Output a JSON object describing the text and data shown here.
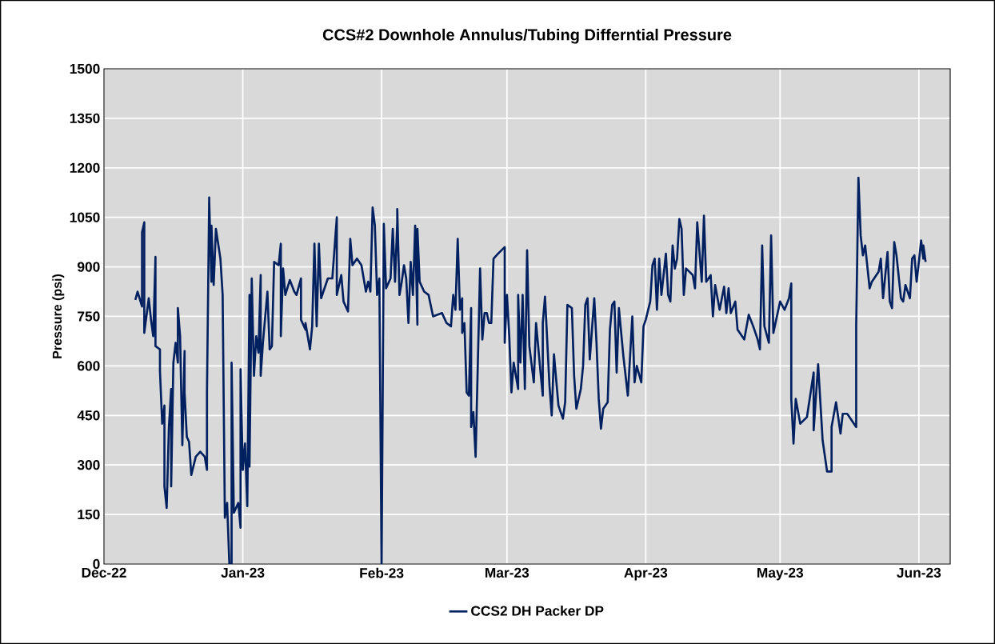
{
  "chart_data": {
    "type": "line",
    "title": "CCS#2 Downhole  Annulus/Tubing Differntial Pressure",
    "ylabel": "Pressure (psi)",
    "xlim": [
      "2022-12-01",
      "2023-06-08"
    ],
    "xticks": [
      {
        "value": "2022-12-01",
        "label": "Dec-22"
      },
      {
        "value": "2023-01-01",
        "label": "Jan-23"
      },
      {
        "value": "2023-02-01",
        "label": "Feb-23"
      },
      {
        "value": "2023-03-01",
        "label": "Mar-23"
      },
      {
        "value": "2023-04-01",
        "label": "Apr-23"
      },
      {
        "value": "2023-05-01",
        "label": "May-23"
      },
      {
        "value": "2023-06-01",
        "label": "Jun-23"
      }
    ],
    "ylim": [
      0,
      1500
    ],
    "yticks": [
      0,
      150,
      300,
      450,
      600,
      750,
      900,
      1050,
      1200,
      1350,
      1500
    ],
    "grid": true,
    "legend": "bottom",
    "marker": "none",
    "line_style": "solid",
    "x": [
      "2022-12-08",
      "2022-12-08T12:00",
      "2022-12-09T12:00",
      "2022-12-09T12:00",
      "2022-12-10",
      "2022-12-10",
      "2022-12-11",
      "2022-12-11T12:00",
      "2022-12-12",
      "2022-12-12T12:00",
      "2022-12-12T12:00",
      "2022-12-13T12:00",
      "2022-12-13T12:00",
      "2022-12-14",
      "2022-12-14T12:00",
      "2022-12-14T12:00",
      "2022-12-15",
      "2022-12-15T12:00",
      "2022-12-16",
      "2022-12-16",
      "2022-12-16T12:00",
      "2022-12-17",
      "2022-12-17T12:00",
      "2022-12-17T12:00",
      "2022-12-18",
      "2022-12-18T12:00",
      "2022-12-19",
      "2022-12-19",
      "2022-12-19T12:00",
      "2022-12-20",
      "2022-12-20T12:00",
      "2022-12-21T12:00",
      "2022-12-22T12:00",
      "2022-12-23T12:00",
      "2022-12-24",
      "2022-12-24",
      "2022-12-24T12:00",
      "2022-12-24T12:00",
      "2022-12-25",
      "2022-12-25",
      "2022-12-25T12:00",
      "2022-12-26",
      "2022-12-27",
      "2022-12-27T12:00",
      "2022-12-28",
      "2022-12-28T12:00",
      "2022-12-29",
      "2022-12-29T12:00",
      "2022-12-29T12:00",
      "2022-12-30",
      "2022-12-31",
      "2022-12-31T12:00",
      "2022-12-31T12:00",
      "2023-01-01",
      "2023-01-01T12:00",
      "2023-01-02",
      "2023-01-02T12:00",
      "2023-01-02T12:00",
      "2023-01-03",
      "2023-01-03T12:00",
      "2023-01-04",
      "2023-01-04T12:00",
      "2023-01-05",
      "2023-01-05",
      "2023-01-05T12:00",
      "2023-01-06T12:00",
      "2023-01-07",
      "2023-01-07T12:00",
      "2023-01-08",
      "2023-01-09",
      "2023-01-09T12:00",
      "2023-01-09T12:00",
      "2023-01-10",
      "2023-01-10T12:00",
      "2023-01-11T12:00",
      "2023-01-12T12:00",
      "2023-01-13",
      "2023-01-14",
      "2023-01-14",
      "2023-01-15",
      "2023-01-15",
      "2023-01-16",
      "2023-01-16T12:00",
      "2023-01-17",
      "2023-01-17T12:00",
      "2023-01-18",
      "2023-01-18T12:00",
      "2023-01-20",
      "2023-01-21",
      "2023-01-22",
      "2023-01-22",
      "2023-01-23",
      "2023-01-23T12:00",
      "2023-01-24T12:00",
      "2023-01-25",
      "2023-01-25T12:00",
      "2023-01-26T12:00",
      "2023-01-27T12:00",
      "2023-01-28T12:00",
      "2023-01-29",
      "2023-01-29T12:00",
      "2023-01-30",
      "2023-01-30T12:00",
      "2023-01-31",
      "2023-01-31T12:00",
      "2023-02-01",
      "2023-02-01T12:00",
      "2023-02-02",
      "2023-02-03",
      "2023-02-03T12:00",
      "2023-02-04",
      "2023-02-04T12:00",
      "2023-02-04T12:00",
      "2023-02-05",
      "2023-02-05T12:00",
      "2023-02-06",
      "2023-02-06T12:00",
      "2023-02-07",
      "2023-02-07T12:00",
      "2023-02-08",
      "2023-02-08T12:00",
      "2023-02-09",
      "2023-02-09",
      "2023-02-09T12:00",
      "2023-02-10T12:00",
      "2023-02-11T12:00",
      "2023-02-12T12:00",
      "2023-02-14T12:00",
      "2023-02-15T12:00",
      "2023-02-16T12:00",
      "2023-02-17",
      "2023-02-17T12:00",
      "2023-02-18",
      "2023-02-18T12:00",
      "2023-02-19",
      "2023-02-19",
      "2023-02-19T12:00",
      "2023-02-20",
      "2023-02-20T12:00",
      "2023-02-21",
      "2023-02-21",
      "2023-02-21T12:00",
      "2023-02-22",
      "2023-02-22T12:00",
      "2023-02-23",
      "2023-02-23T12:00",
      "2023-02-24",
      "2023-02-24T12:00",
      "2023-02-25",
      "2023-02-25T12:00",
      "2023-02-26",
      "2023-02-27",
      "2023-02-28T12:00",
      "2023-02-28T12:00",
      "2023-03-01",
      "2023-03-01T12:00",
      "2023-03-02",
      "2023-03-02T12:00",
      "2023-03-03T12:00",
      "2023-03-03T12:00",
      "2023-03-04",
      "2023-03-04T12:00",
      "2023-03-05",
      "2023-03-05T12:00",
      "2023-03-06",
      "2023-03-07",
      "2023-03-07T12:00",
      "2023-03-08T12:00",
      "2023-03-09",
      "2023-03-09",
      "2023-03-09T12:00",
      "2023-03-10T12:00",
      "2023-03-11",
      "2023-03-11T12:00",
      "2023-03-12T12:00",
      "2023-03-13T12:00",
      "2023-03-14",
      "2023-03-14T12:00",
      "2023-03-15T12:00",
      "2023-03-16",
      "2023-03-16T12:00",
      "2023-03-17T12:00",
      "2023-03-18",
      "2023-03-18T12:00",
      "2023-03-19",
      "2023-03-19T12:00",
      "2023-03-20T12:00",
      "2023-03-21",
      "2023-03-21T12:00",
      "2023-03-22",
      "2023-03-22T12:00",
      "2023-03-23T12:00",
      "2023-03-24",
      "2023-03-24T12:00",
      "2023-03-25",
      "2023-03-25T12:00",
      "2023-03-26",
      "2023-03-27",
      "2023-03-28",
      "2023-03-29",
      "2023-03-29T12:00",
      "2023-03-30",
      "2023-03-31",
      "2023-03-31T12:00",
      "2023-04-01",
      "2023-04-02",
      "2023-04-02T12:00",
      "2023-04-03",
      "2023-04-03T12:00",
      "2023-04-04",
      "2023-04-04T12:00",
      "2023-04-05T12:00",
      "2023-04-06",
      "2023-04-06T12:00",
      "2023-04-07",
      "2023-04-07T12:00",
      "2023-04-08",
      "2023-04-08T12:00",
      "2023-04-09",
      "2023-04-09T12:00",
      "2023-04-10",
      "2023-04-11T12:00",
      "2023-04-12",
      "2023-04-12T12:00",
      "2023-04-13T12:00",
      "2023-04-14",
      "2023-04-14T12:00",
      "2023-04-15T12:00",
      "2023-04-16",
      "2023-04-16T12:00",
      "2023-04-17T12:00",
      "2023-04-18T12:00",
      "2023-04-19",
      "2023-04-19T12:00",
      "2023-04-20",
      "2023-04-21",
      "2023-04-21T12:00",
      "2023-04-23",
      "2023-04-24",
      "2023-04-25",
      "2023-04-26",
      "2023-04-26T12:00",
      "2023-04-27",
      "2023-04-27T12:00",
      "2023-04-28T12:00",
      "2023-04-29",
      "2023-04-29T12:00",
      "2023-05-01",
      "2023-05-02",
      "2023-05-03",
      "2023-05-03T12:00",
      "2023-05-03T12:00",
      "2023-05-04",
      "2023-05-04T12:00",
      "2023-05-05T12:00",
      "2023-05-07",
      "2023-05-08T12:00",
      "2023-05-08T12:00",
      "2023-05-09T12:00",
      "2023-05-10T12:00",
      "2023-05-11T12:00",
      "2023-05-12T12:00",
      "2023-05-12T12:00",
      "2023-05-13T12:00",
      "2023-05-14T12:00",
      "2023-05-15",
      "2023-05-16",
      "2023-05-18",
      "2023-05-18",
      "2023-05-18T12:00",
      "2023-05-19",
      "2023-05-19T12:00",
      "2023-05-20",
      "2023-05-21",
      "2023-05-21T12:00",
      "2023-05-23",
      "2023-05-23T12:00",
      "2023-05-24",
      "2023-05-25",
      "2023-05-25T12:00",
      "2023-05-26",
      "2023-05-26T12:00",
      "2023-05-27",
      "2023-05-28",
      "2023-05-28T12:00",
      "2023-05-29",
      "2023-05-30",
      "2023-05-30T12:00",
      "2023-05-31",
      "2023-05-31T12:00",
      "2023-06-01",
      "2023-06-01T12:00",
      "2023-06-02",
      "2023-06-02",
      "2023-06-02T12:00"
    ],
    "series": [
      {
        "name": "CCS2 DH Packer DP",
        "color": "#002060",
        "values": [
          800,
          825,
          780,
          1005,
          1035,
          700,
          805,
          740,
          690,
          930,
          660,
          650,
          585,
          425,
          480,
          235,
          170,
          415,
          530,
          235,
          610,
          670,
          610,
          775,
          690,
          360,
          645,
          520,
          385,
          370,
          270,
          325,
          340,
          325,
          285,
          520,
          1110,
          1100,
          855,
          1025,
          845,
          1015,
          925,
          815,
          140,
          185,
          0,
          0,
          610,
          155,
          185,
          110,
          590,
          285,
          365,
          175,
          815,
          295,
          865,
          570,
          690,
          640,
          875,
          570,
          670,
          825,
          650,
          660,
          915,
          905,
          970,
          690,
          895,
          815,
          860,
          825,
          815,
          865,
          740,
          710,
          730,
          650,
          720,
          970,
          720,
          970,
          805,
          865,
          865,
          1050,
          815,
          875,
          795,
          765,
          985,
          905,
          925,
          905,
          825,
          855,
          825,
          1080,
          1025,
          815,
          865,
          0,
          1030,
          835,
          865,
          1015,
          855,
          1035,
          1075,
          815,
          855,
          905,
          865,
          730,
          915,
          815,
          1025,
          725,
          1015,
          855,
          825,
          815,
          750,
          760,
          730,
          720,
          815,
          770,
          985,
          770,
          805,
          700,
          730,
          520,
          510,
          775,
          415,
          460,
          325,
          610,
          895,
          680,
          760,
          760,
          730,
          730,
          925,
          940,
          960,
          670,
          815,
          695,
          520,
          610,
          530,
          815,
          610,
          815,
          530,
          950,
          660,
          550,
          730,
          580,
          510,
          730,
          810,
          540,
          450,
          635,
          480,
          440,
          490,
          785,
          775,
          570,
          470,
          530,
          600,
          785,
          805,
          620,
          805,
          670,
          500,
          410,
          470,
          490,
          710,
          785,
          795,
          580,
          775,
          630,
          510,
          750,
          550,
          600,
          550,
          720,
          740,
          795,
          905,
          925,
          770,
          925,
          815,
          940,
          815,
          795,
          965,
          895,
          925,
          1045,
          1015,
          815,
          895,
          875,
          835,
          1035,
          855,
          1055,
          855,
          875,
          750,
          845,
          770,
          840,
          760,
          835,
          760,
          795,
          710,
          680,
          755,
          720,
          680,
          650,
          965,
          720,
          670,
          995,
          700,
          795,
          770,
          805,
          850,
          500,
          365,
          500,
          425,
          445,
          580,
          405,
          605,
          375,
          280,
          280,
          415,
          490,
          395,
          455,
          455,
          415,
          720,
          1170,
          995,
          935,
          965,
          835,
          855,
          885,
          925,
          805,
          945,
          795,
          775,
          975,
          935,
          805,
          795,
          845,
          805,
          925,
          935,
          855,
          915,
          980,
          925,
          965,
          915
        ]
      }
    ]
  }
}
